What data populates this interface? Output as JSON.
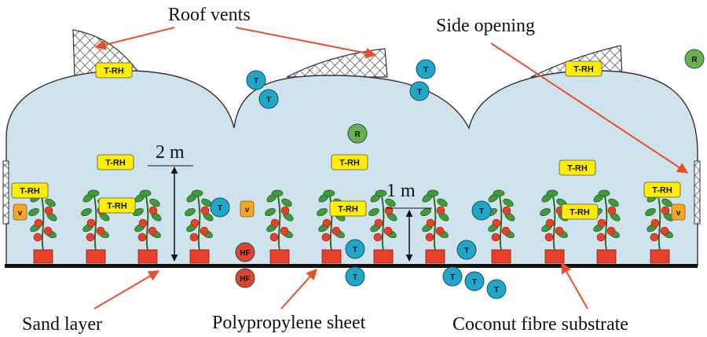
{
  "labels": {
    "roof_vents": "Roof vents",
    "side_opening": "Side opening",
    "height_2m": "2 m",
    "height_1m": "1 m",
    "sand_layer": "Sand layer",
    "polypropylene_sheet": "Polypropylene sheet",
    "coconut_substrate": "Coconut fibre substrate"
  },
  "sensors": {
    "trh": "T-RH",
    "temperature": "T",
    "radiation": "R",
    "heat_flux": "HF",
    "velocity": "V"
  },
  "colors": {
    "greenhouse_fill": "#cfe3ef",
    "outline": "#333333",
    "trh_badge": "#ffee00",
    "temperature_sensor": "#1ea7c9",
    "radiation_sensor": "#6ab04c",
    "heat_flux_sensor": "#e0442a",
    "velocity_sensor": "#f5a623",
    "pot": "#e8402a",
    "leaf": "#3f9a3a",
    "tomato": "#e8402a",
    "arrow": "#e8502a"
  }
}
